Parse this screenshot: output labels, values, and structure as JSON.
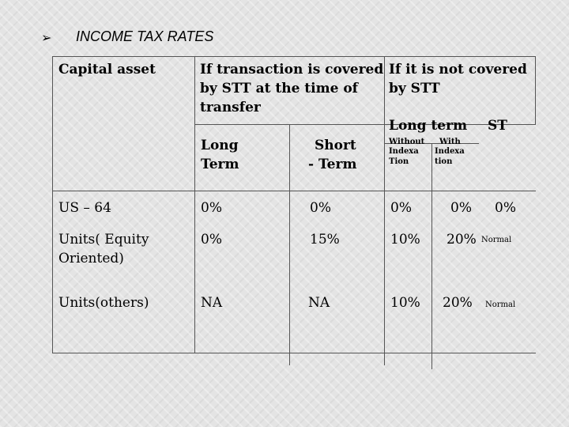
{
  "slide": {
    "bullet_icon": "arrow-bullet-icon",
    "title": "INCOME TAX RATES"
  },
  "table": {
    "headers": {
      "capital_asset": "Capital asset",
      "covered_line1": "If transaction is covered",
      "covered_line2": "by STT at the time of",
      "covered_line3": "transfer",
      "not_covered_line1": "If it is not covered",
      "not_covered_line2": "by STT",
      "long_term_1": "Long",
      "long_term_2": "Term",
      "short_term_1": "Short",
      "short_term_2": "- Term",
      "long_term_group": "Long term",
      "st": "ST",
      "without_1": "Without",
      "without_2": "Indexa",
      "without_3": "Tion",
      "with_1": "With",
      "with_2": "Indexa",
      "with_3": "tion"
    },
    "rows": [
      {
        "asset": "US – 64",
        "asset2": "",
        "lt": "0%",
        "st": "0%",
        "without": "0%",
        "with": "0%",
        "stt_st": "0%",
        "note": ""
      },
      {
        "asset": "Units( Equity",
        "asset2": "Oriented)",
        "lt": "0%",
        "st": "15%",
        "without": "10%",
        "with": "20%",
        "stt_st": "",
        "note": "Normal"
      },
      {
        "asset": "Units(others)",
        "asset2": "",
        "lt": "NA",
        "st": "NA",
        "without": "10%",
        "with": "20%",
        "stt_st": "",
        "note": "Normal"
      }
    ]
  }
}
